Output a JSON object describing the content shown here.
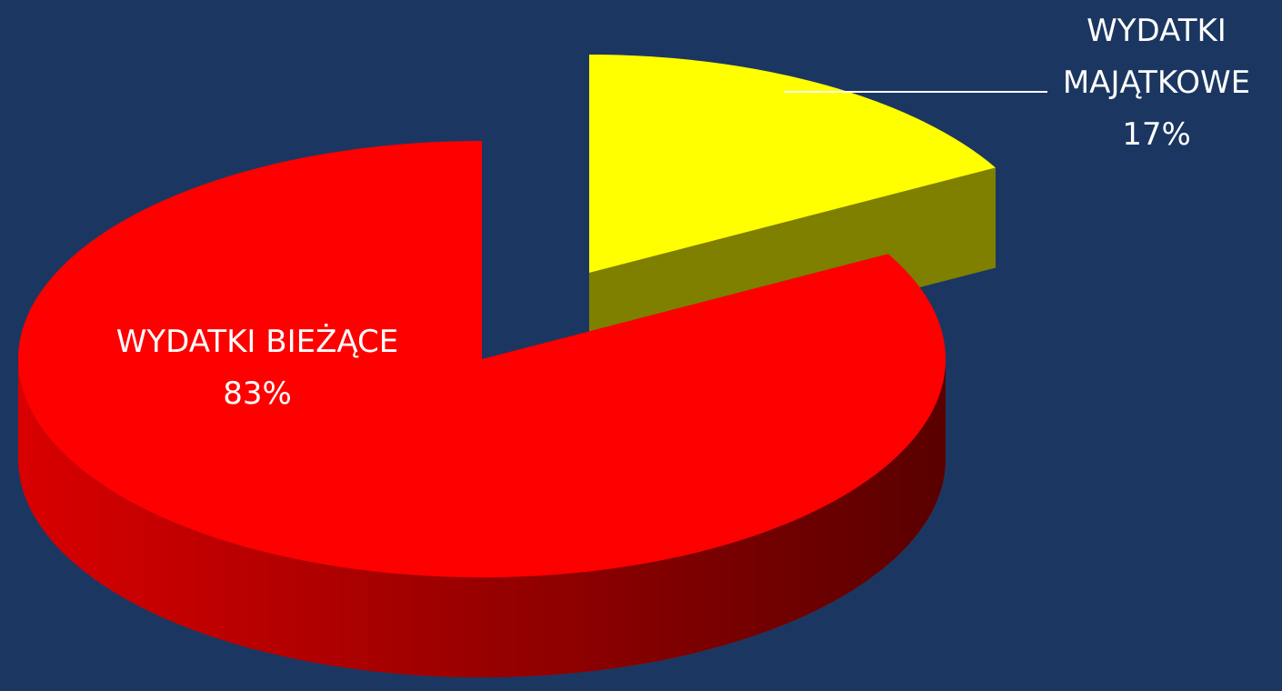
{
  "chart_data": {
    "type": "pie",
    "categories": [
      "WYDATKI MAJĄTKOWE",
      "WYDATKI BIEŻĄCE"
    ],
    "values": [
      17,
      83
    ],
    "value_labels": [
      "17%",
      "83%"
    ],
    "colors": [
      "#ffff00",
      "#ff0000"
    ]
  }
}
